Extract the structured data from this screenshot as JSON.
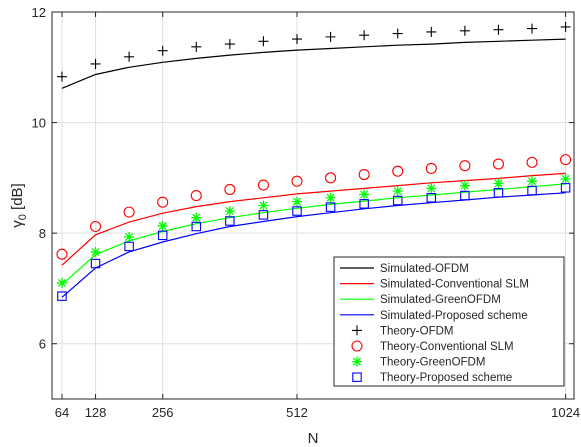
{
  "chart_data": {
    "type": "line",
    "xlabel": "N",
    "ylabel_main": "γ",
    "ylabel_sub": "0",
    "ylabel_rest": " [dB]",
    "xlim": [
      45,
      1040
    ],
    "ylim": [
      5,
      12
    ],
    "x_ticks": [
      64,
      128,
      256,
      512,
      1024
    ],
    "x_tick_labels": [
      "64",
      "128",
      "256",
      "512",
      "1024"
    ],
    "y_ticks": [
      6,
      8,
      10,
      12
    ],
    "y_tick_labels": [
      "6",
      "8",
      "10",
      "12"
    ],
    "grid": true,
    "legend_position": "lower right",
    "x": [
      64,
      128,
      192,
      256,
      320,
      384,
      448,
      512,
      576,
      640,
      704,
      768,
      832,
      896,
      960,
      1024
    ],
    "series": [
      {
        "name": "Simulated-OFDM",
        "style": "line",
        "color": "#000000",
        "values": [
          10.62,
          10.87,
          11.0,
          11.09,
          11.16,
          11.22,
          11.27,
          11.31,
          11.34,
          11.37,
          11.4,
          11.42,
          11.45,
          11.47,
          11.49,
          11.51
        ]
      },
      {
        "name": "Simulated-Conventional SLM",
        "style": "line",
        "color": "#ff0000",
        "values": [
          7.42,
          7.97,
          8.2,
          8.36,
          8.48,
          8.57,
          8.64,
          8.71,
          8.76,
          8.81,
          8.86,
          8.91,
          8.95,
          8.99,
          9.04,
          9.08
        ]
      },
      {
        "name": "Simulated-GreenOFDM",
        "style": "line",
        "color": "#00ff00",
        "values": [
          7.07,
          7.61,
          7.86,
          8.03,
          8.17,
          8.28,
          8.37,
          8.45,
          8.52,
          8.58,
          8.64,
          8.69,
          8.74,
          8.79,
          8.84,
          8.89
        ]
      },
      {
        "name": "Simulated-Proposed scheme",
        "style": "line",
        "color": "#0000ff",
        "values": [
          6.84,
          7.37,
          7.66,
          7.84,
          7.99,
          8.12,
          8.21,
          8.3,
          8.37,
          8.44,
          8.5,
          8.55,
          8.6,
          8.65,
          8.69,
          8.73
        ]
      },
      {
        "name": "Theory-OFDM",
        "style": "marker",
        "marker": "plus",
        "color": "#000000",
        "values": [
          10.83,
          11.06,
          11.19,
          11.3,
          11.37,
          11.42,
          11.47,
          11.51,
          11.55,
          11.58,
          11.61,
          11.64,
          11.66,
          11.68,
          11.7,
          11.73
        ]
      },
      {
        "name": "Theory-Conventional SLM",
        "style": "marker",
        "marker": "circle",
        "color": "#ff0000",
        "values": [
          7.62,
          8.12,
          8.38,
          8.56,
          8.68,
          8.79,
          8.87,
          8.94,
          9.0,
          9.06,
          9.12,
          9.17,
          9.22,
          9.25,
          9.28,
          9.33
        ]
      },
      {
        "name": "Theory-GreenOFDM",
        "style": "marker",
        "marker": "asterisk",
        "color": "#00ff00",
        "values": [
          7.1,
          7.66,
          7.93,
          8.13,
          8.28,
          8.4,
          8.5,
          8.57,
          8.64,
          8.7,
          8.76,
          8.81,
          8.86,
          8.9,
          8.94,
          8.98
        ]
      },
      {
        "name": "Theory-Proposed scheme",
        "style": "marker",
        "marker": "square",
        "color": "#0000ff",
        "values": [
          6.86,
          7.45,
          7.76,
          7.96,
          8.12,
          8.22,
          8.33,
          8.4,
          8.47,
          8.53,
          8.59,
          8.64,
          8.68,
          8.73,
          8.77,
          8.82
        ]
      }
    ]
  }
}
